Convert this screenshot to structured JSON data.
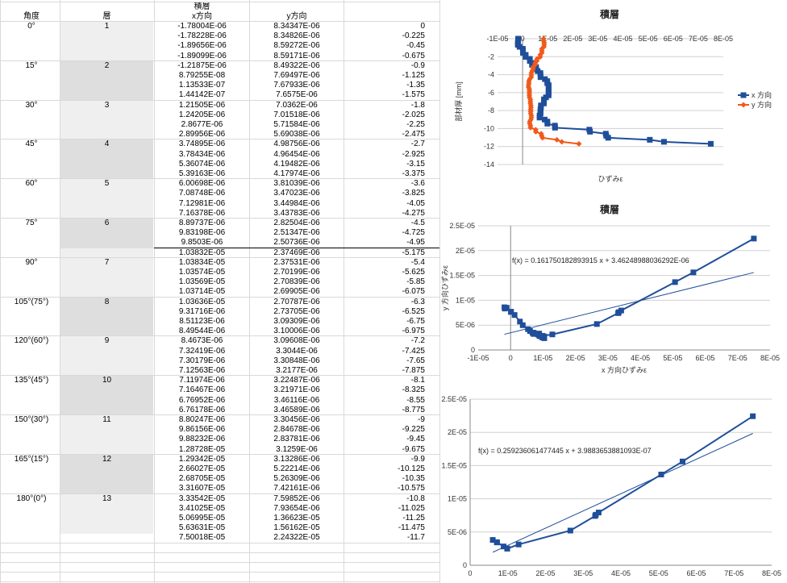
{
  "table": {
    "header_top": "積層",
    "headers": {
      "angle": "角度",
      "layer": "層",
      "x": "x方向",
      "y": "y方向"
    },
    "groups": [
      {
        "angle": "0°",
        "layer": "1"
      },
      {
        "angle": "15°",
        "layer": "2"
      },
      {
        "angle": "30°",
        "layer": "3"
      },
      {
        "angle": "45°",
        "layer": "4"
      },
      {
        "angle": "60°",
        "layer": "5"
      },
      {
        "angle": "75°",
        "layer": "6"
      },
      {
        "angle": "90°",
        "layer": "7"
      },
      {
        "angle": "105°(75°)",
        "layer": "8"
      },
      {
        "angle": "120°(60°)",
        "layer": "9"
      },
      {
        "angle": "135°(45°)",
        "layer": "10"
      },
      {
        "angle": "150°(30°)",
        "layer": "11"
      },
      {
        "angle": "165°(15°)",
        "layer": "12"
      },
      {
        "angle": "180°(0°)",
        "layer": "13"
      }
    ],
    "rows": [
      [
        "-1.78004E-06",
        "8.34347E-06",
        "0"
      ],
      [
        "-1.78228E-06",
        "8.34826E-06",
        "-0.225"
      ],
      [
        "-1.89656E-06",
        "8.59272E-06",
        "-0.45"
      ],
      [
        "-1.89099E-06",
        "8.59171E-06",
        "-0.675"
      ],
      [
        "-1.21875E-06",
        "8.49322E-06",
        "-0.9"
      ],
      [
        "8.79255E-08",
        "7.69497E-06",
        "-1.125"
      ],
      [
        "1.13533E-07",
        "7.67933E-06",
        "-1.35"
      ],
      [
        "1.44142E-07",
        "7.6575E-06",
        "-1.575"
      ],
      [
        "1.21505E-06",
        "7.0362E-06",
        "-1.8"
      ],
      [
        "1.24205E-06",
        "7.01518E-06",
        "-2.025"
      ],
      [
        "2.8677E-06",
        "5.71584E-06",
        "-2.25"
      ],
      [
        "2.89956E-06",
        "5.69038E-06",
        "-2.475"
      ],
      [
        "3.74895E-06",
        "4.98756E-06",
        "-2.7"
      ],
      [
        "3.78434E-06",
        "4.96454E-06",
        "-2.925"
      ],
      [
        "5.36074E-06",
        "4.19482E-06",
        "-3.15"
      ],
      [
        "5.39163E-06",
        "4.17974E-06",
        "-3.375"
      ],
      [
        "6.00698E-06",
        "3.81039E-06",
        "-3.6"
      ],
      [
        "7.08748E-06",
        "3.47023E-06",
        "-3.825"
      ],
      [
        "7.12981E-06",
        "3.44984E-06",
        "-4.05"
      ],
      [
        "7.16378E-06",
        "3.43783E-06",
        "-4.275"
      ],
      [
        "8.89737E-06",
        "2.82504E-06",
        "-4.5"
      ],
      [
        "9.83198E-06",
        "2.51347E-06",
        "-4.725"
      ],
      [
        "9.8503E-06",
        "2.50736E-06",
        "-4.95"
      ],
      [
        "1.03832E-05",
        "2.37469E-06",
        "-5.175"
      ],
      [
        "1.03834E-05",
        "2.37531E-06",
        "-5.4"
      ],
      [
        "1.03574E-05",
        "2.70199E-06",
        "-5.625"
      ],
      [
        "1.03569E-05",
        "2.70839E-06",
        "-5.85"
      ],
      [
        "1.03714E-05",
        "2.69905E-06",
        "-6.075"
      ],
      [
        "1.03636E-05",
        "2.70787E-06",
        "-6.3"
      ],
      [
        "9.31716E-06",
        "2.73705E-06",
        "-6.525"
      ],
      [
        "8.51123E-06",
        "3.09309E-06",
        "-6.75"
      ],
      [
        "8.49544E-06",
        "3.10006E-06",
        "-6.975"
      ],
      [
        "8.4673E-06",
        "3.09608E-06",
        "-7.2"
      ],
      [
        "7.32419E-06",
        "3.3044E-06",
        "-7.425"
      ],
      [
        "7.30179E-06",
        "3.30848E-06",
        "-7.65"
      ],
      [
        "7.12563E-06",
        "3.2177E-06",
        "-7.875"
      ],
      [
        "7.11974E-06",
        "3.22487E-06",
        "-8.1"
      ],
      [
        "7.16467E-06",
        "3.21971E-06",
        "-8.325"
      ],
      [
        "6.76952E-06",
        "3.46116E-06",
        "-8.55"
      ],
      [
        "6.76178E-06",
        "3.46589E-06",
        "-8.775"
      ],
      [
        "8.80247E-06",
        "3.30456E-06",
        "-9"
      ],
      [
        "9.86156E-06",
        "2.84678E-06",
        "-9.225"
      ],
      [
        "9.88232E-06",
        "2.83781E-06",
        "-9.45"
      ],
      [
        "1.28728E-05",
        "3.1259E-06",
        "-9.675"
      ],
      [
        "1.29342E-05",
        "3.13286E-06",
        "-9.9"
      ],
      [
        "2.66027E-05",
        "5.22214E-06",
        "-10.125"
      ],
      [
        "2.68705E-05",
        "5.26309E-06",
        "-10.35"
      ],
      [
        "3.31607E-05",
        "7.42161E-06",
        "-10.575"
      ],
      [
        "3.33542E-05",
        "7.59852E-06",
        "-10.8"
      ],
      [
        "3.41025E-05",
        "7.93654E-06",
        "-11.025"
      ],
      [
        "5.06995E-05",
        "1.36623E-05",
        "-11.25"
      ],
      [
        "5.63631E-05",
        "1.56162E-05",
        "-11.475"
      ],
      [
        "7.50018E-05",
        "2.24322E-05",
        "-11.7"
      ]
    ]
  },
  "chart_data": [
    {
      "type": "line",
      "title": "積層",
      "xlabel": "ひずみε",
      "ylabel": "部材厚 [mm]",
      "xlim": [
        -1e-05,
        8e-05
      ],
      "ylim": [
        -14,
        0
      ],
      "xticks": [
        "-1E-05",
        "0",
        "1E-05",
        "2E-05",
        "3E-05",
        "4E-05",
        "5E-05",
        "6E-05",
        "7E-05",
        "8E-05"
      ],
      "yticks": [
        "0",
        "-2",
        "-4",
        "-6",
        "-8",
        "-10",
        "-12",
        "-14"
      ],
      "legend": "right",
      "series": [
        {
          "name": "x 方向",
          "color": "#1f4e9a",
          "marker": "square",
          "x": [
            -1.78e-06,
            -1.78e-06,
            -1.9e-06,
            -1.89e-06,
            -1.22e-06,
            8.8e-08,
            1.14e-07,
            1.44e-07,
            1.22e-06,
            1.24e-06,
            2.87e-06,
            2.9e-06,
            3.75e-06,
            3.78e-06,
            5.36e-06,
            5.39e-06,
            6.01e-06,
            7.09e-06,
            7.13e-06,
            7.16e-06,
            8.9e-06,
            9.83e-06,
            9.85e-06,
            1.038e-05,
            1.038e-05,
            1.036e-05,
            1.036e-05,
            1.037e-05,
            1.036e-05,
            9.32e-06,
            8.51e-06,
            8.5e-06,
            8.47e-06,
            7.32e-06,
            7.3e-06,
            7.13e-06,
            7.12e-06,
            7.16e-06,
            6.77e-06,
            6.76e-06,
            8.8e-06,
            9.86e-06,
            9.88e-06,
            1.287e-05,
            1.293e-05,
            2.66e-05,
            2.687e-05,
            3.316e-05,
            3.335e-05,
            3.41e-05,
            5.07e-05,
            5.636e-05,
            7.5e-05
          ],
          "y": [
            0,
            -0.225,
            -0.45,
            -0.675,
            -0.9,
            -1.125,
            -1.35,
            -1.575,
            -1.8,
            -2.025,
            -2.25,
            -2.475,
            -2.7,
            -2.925,
            -3.15,
            -3.375,
            -3.6,
            -3.825,
            -4.05,
            -4.275,
            -4.5,
            -4.725,
            -4.95,
            -5.175,
            -5.4,
            -5.625,
            -5.85,
            -6.075,
            -6.3,
            -6.525,
            -6.75,
            -6.975,
            -7.2,
            -7.425,
            -7.65,
            -7.875,
            -8.1,
            -8.325,
            -8.55,
            -8.775,
            -9,
            -9.225,
            -9.45,
            -9.675,
            -9.9,
            -10.125,
            -10.35,
            -10.575,
            -10.8,
            -11.025,
            -11.25,
            -11.475,
            -11.7
          ]
        },
        {
          "name": "y 方向",
          "color": "#f05a1a",
          "marker": "diamond",
          "x": [
            8.34e-06,
            8.35e-06,
            8.59e-06,
            8.59e-06,
            8.49e-06,
            7.69e-06,
            7.68e-06,
            7.66e-06,
            7.04e-06,
            7.02e-06,
            5.72e-06,
            5.69e-06,
            4.99e-06,
            4.96e-06,
            4.19e-06,
            4.18e-06,
            3.81e-06,
            3.47e-06,
            3.45e-06,
            3.44e-06,
            2.83e-06,
            2.51e-06,
            2.51e-06,
            2.37e-06,
            2.38e-06,
            2.7e-06,
            2.71e-06,
            2.7e-06,
            2.71e-06,
            2.74e-06,
            3.09e-06,
            3.1e-06,
            3.1e-06,
            3.3e-06,
            3.31e-06,
            3.22e-06,
            3.22e-06,
            3.22e-06,
            3.46e-06,
            3.47e-06,
            3.3e-06,
            2.85e-06,
            2.84e-06,
            3.13e-06,
            3.13e-06,
            5.22e-06,
            5.26e-06,
            7.42e-06,
            7.6e-06,
            7.94e-06,
            1.366e-05,
            1.562e-05,
            2.243e-05
          ],
          "y": [
            0,
            -0.225,
            -0.45,
            -0.675,
            -0.9,
            -1.125,
            -1.35,
            -1.575,
            -1.8,
            -2.025,
            -2.25,
            -2.475,
            -2.7,
            -2.925,
            -3.15,
            -3.375,
            -3.6,
            -3.825,
            -4.05,
            -4.275,
            -4.5,
            -4.725,
            -4.95,
            -5.175,
            -5.4,
            -5.625,
            -5.85,
            -6.075,
            -6.3,
            -6.525,
            -6.75,
            -6.975,
            -7.2,
            -7.425,
            -7.65,
            -7.875,
            -8.1,
            -8.325,
            -8.55,
            -8.775,
            -9,
            -9.225,
            -9.45,
            -9.675,
            -9.9,
            -10.125,
            -10.35,
            -10.575,
            -10.8,
            -11.025,
            -11.25,
            -11.475,
            -11.7
          ]
        }
      ]
    },
    {
      "type": "scatter",
      "title": "積層",
      "xlabel": "x 方向ひずみε",
      "ylabel": "y 方向ひずみε",
      "xlim": [
        -1e-05,
        8e-05
      ],
      "ylim": [
        0,
        2.5e-05
      ],
      "xticks": [
        "-1E-05",
        "0",
        "1E-05",
        "2E-05",
        "3E-05",
        "4E-05",
        "5E-05",
        "6E-05",
        "7E-05",
        "8E-05"
      ],
      "yticks": [
        "0",
        "5E-06",
        "1E-05",
        "1.5E-05",
        "2E-05",
        "2.5E-05"
      ],
      "fx": "f(x) = 0.161750182893915 x + 3.46248988036292E-06",
      "trend": {
        "slope": 0.161750182893915,
        "intercept": 3.46248988036292e-06
      },
      "series": [
        {
          "color": "#1f4e9a",
          "x": [
            -1.78e-06,
            -1.9e-06,
            -1.22e-06,
            8.8e-08,
            1.44e-07,
            1.22e-06,
            2.87e-06,
            3.75e-06,
            5.36e-06,
            6.01e-06,
            7.09e-06,
            8.9e-06,
            9.83e-06,
            1.038e-05,
            1.036e-05,
            9.32e-06,
            8.51e-06,
            7.32e-06,
            7.12e-06,
            6.77e-06,
            8.8e-06,
            9.86e-06,
            1.287e-05,
            2.66e-05,
            3.316e-05,
            3.335e-05,
            3.41e-05,
            5.07e-05,
            5.636e-05,
            7.5e-05
          ],
          "y": [
            8.34e-06,
            8.59e-06,
            8.49e-06,
            7.69e-06,
            7.66e-06,
            7.04e-06,
            5.72e-06,
            4.99e-06,
            4.19e-06,
            3.81e-06,
            3.47e-06,
            2.83e-06,
            2.51e-06,
            2.37e-06,
            2.7e-06,
            2.74e-06,
            3.09e-06,
            3.3e-06,
            3.22e-06,
            3.46e-06,
            3.3e-06,
            2.85e-06,
            3.13e-06,
            5.22e-06,
            7.42e-06,
            7.6e-06,
            7.94e-06,
            1.366e-05,
            1.562e-05,
            2.243e-05
          ]
        }
      ]
    },
    {
      "type": "scatter",
      "title": "",
      "xlim": [
        0,
        8e-05
      ],
      "ylim": [
        0,
        2.5e-05
      ],
      "xticks": [
        "0",
        "1E-05",
        "2E-05",
        "3E-05",
        "4E-05",
        "5E-05",
        "6E-05",
        "7E-05",
        "8E-05"
      ],
      "yticks": [
        "0",
        "5E-06",
        "1E-05",
        "1.5E-05",
        "2E-05",
        "2.5E-05"
      ],
      "fx": "f(x) = 0.259236061477445 x + 3.98836538810 93E-07",
      "fx_text": "f(x) = 0.259236061477445 x + 3.9883653881093E-07",
      "trend": {
        "slope": 0.259236061477445,
        "intercept": 3.9883653881093e-07
      },
      "series": [
        {
          "color": "#1f4e9a",
          "x": [
            6.01e-06,
            7.09e-06,
            7.16e-06,
            8.9e-06,
            9.83e-06,
            9.85e-06,
            1.287e-05,
            2.66e-05,
            3.316e-05,
            3.335e-05,
            3.41e-05,
            5.07e-05,
            5.636e-05,
            7.5e-05
          ],
          "y": [
            3.81e-06,
            3.47e-06,
            3.44e-06,
            2.83e-06,
            2.51e-06,
            2.51e-06,
            3.13e-06,
            5.22e-06,
            7.42e-06,
            7.6e-06,
            7.94e-06,
            1.366e-05,
            1.562e-05,
            2.243e-05
          ]
        }
      ]
    }
  ]
}
